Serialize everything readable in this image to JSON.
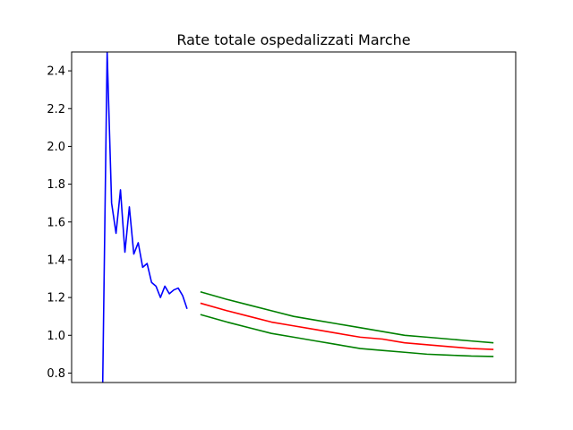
{
  "chart_data": {
    "type": "line",
    "title": "Rate totale ospedalizzati Marche",
    "xlabel": "",
    "ylabel": "",
    "ylim": [
      0.75,
      2.5
    ],
    "xlim": [
      0,
      100
    ],
    "yticks": [
      "0.8",
      "1.0",
      "1.2",
      "1.4",
      "1.6",
      "1.8",
      "2.0",
      "2.2",
      "2.4"
    ],
    "xticks": [],
    "grid": false,
    "legend": "none",
    "series": [
      {
        "color": "#0000ff",
        "x": [
          7,
          8,
          9,
          10,
          11,
          12,
          13,
          14,
          15,
          16,
          17,
          18,
          19,
          20,
          21,
          22,
          23,
          24,
          25,
          26,
          27,
          28,
          29,
          30
        ],
        "y": [
          0.75,
          2.5,
          1.7,
          1.54,
          1.77,
          1.44,
          1.68,
          1.43,
          1.49,
          1.36,
          1.38,
          1.28,
          1.26,
          1.2,
          1.26,
          1.22,
          1.24,
          1.25,
          1.21,
          1.14,
          null,
          null,
          null,
          null
        ]
      },
      {
        "color": "#ff0000",
        "x": [
          29,
          35,
          40,
          45,
          50,
          55,
          60,
          65,
          70,
          75,
          80,
          85,
          90,
          95
        ],
        "y": [
          1.17,
          1.13,
          1.1,
          1.07,
          1.05,
          1.03,
          1.01,
          0.99,
          0.98,
          0.96,
          0.95,
          0.94,
          0.93,
          0.925
        ]
      },
      {
        "color": "#008000",
        "x": [
          29,
          35,
          40,
          45,
          50,
          55,
          60,
          65,
          70,
          75,
          80,
          85,
          90,
          95
        ],
        "y": [
          1.23,
          1.19,
          1.16,
          1.13,
          1.1,
          1.08,
          1.06,
          1.04,
          1.02,
          1.0,
          0.99,
          0.98,
          0.97,
          0.96
        ]
      },
      {
        "color": "#008000",
        "x": [
          29,
          35,
          40,
          45,
          50,
          55,
          60,
          65,
          70,
          75,
          80,
          85,
          90,
          95
        ],
        "y": [
          1.11,
          1.07,
          1.04,
          1.01,
          0.99,
          0.97,
          0.95,
          0.93,
          0.92,
          0.91,
          0.9,
          0.895,
          0.89,
          0.888
        ]
      }
    ]
  }
}
